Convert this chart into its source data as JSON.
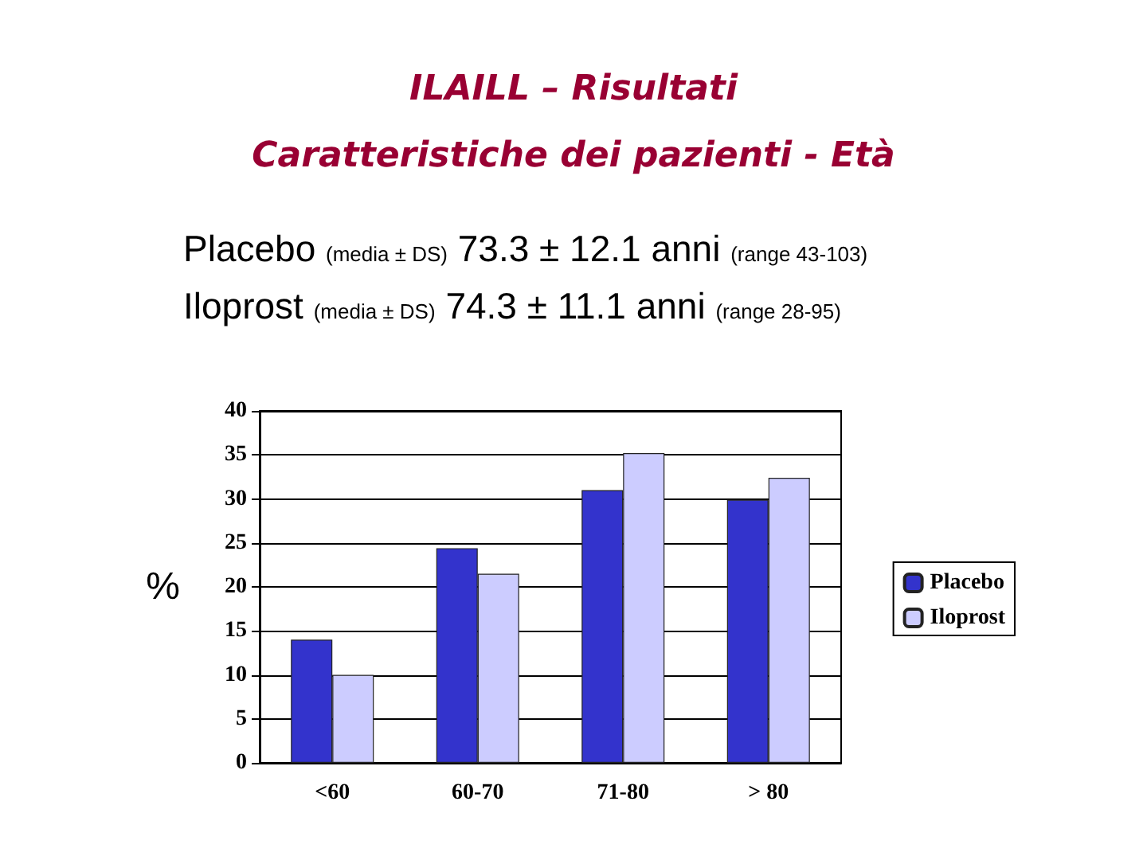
{
  "chart_data": {
    "type": "bar",
    "title": "ILAILL – Risultati\nCaratteristiche dei pazienti - Età",
    "annotations": [
      "Placebo (media ± DS) 73.3 ± 12.1 anni (range 43-103)",
      "Iloprost (media ± DS) 74.3 ± 11.1 anni (range 28-95)"
    ],
    "ylabel": "%",
    "categories": [
      "<60",
      "60-70",
      "71-80",
      "> 80"
    ],
    "series": [
      {
        "name": "Placebo",
        "color": "#3333cc",
        "values": [
          14,
          24.4,
          31,
          29.9
        ]
      },
      {
        "name": "Iloprost",
        "color": "#ccccff",
        "values": [
          10,
          21.5,
          35.2,
          32.4
        ]
      }
    ],
    "ylim": [
      0,
      40
    ],
    "yticks": [
      0,
      5,
      10,
      15,
      20,
      25,
      30,
      35,
      40
    ],
    "grid": "y",
    "legend": "right"
  }
}
